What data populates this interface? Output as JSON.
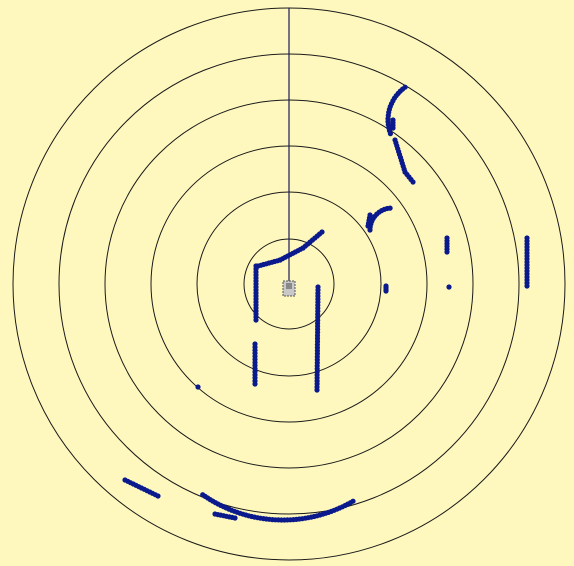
{
  "colors": {
    "background": "#FFF8BE",
    "ring_stroke": "#1A1A1A",
    "heading_line": "#1A1A5A",
    "scan_point": "#0A1A8C",
    "robot_body": "#C8C8C8",
    "robot_outline": "#555555"
  },
  "radar": {
    "range_rings_count": 6,
    "heading": "up",
    "robot_icon": "robot-icon"
  }
}
